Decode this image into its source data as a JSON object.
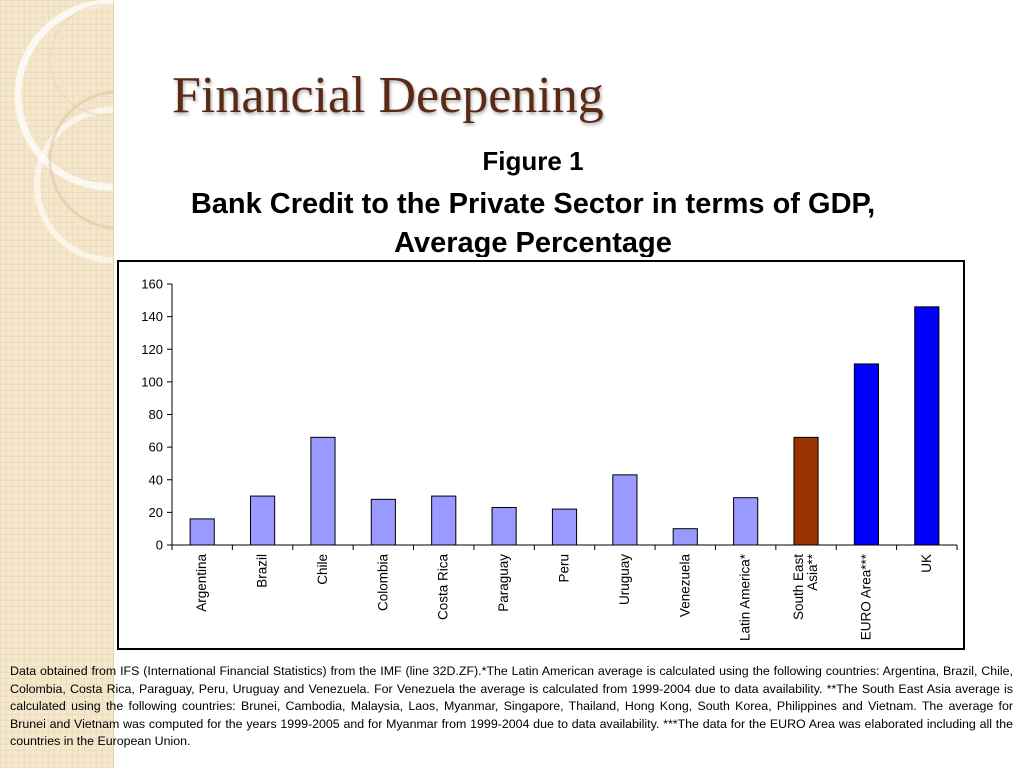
{
  "slide": {
    "title": "Financial Deepening",
    "figure_label": "Figure 1",
    "figure_title_line1": "Bank Credit to the Private Sector in terms of GDP,",
    "figure_title_line2": "Average Percentage"
  },
  "colors": {
    "bar_default": "#9999ff",
    "bar_highlight_asia": "#993300",
    "bar_highlight_eu_uk": "#0000ff",
    "title_color": "#5b2a17",
    "sidebar_bg": "#f4e7cc"
  },
  "chart_data": {
    "type": "bar",
    "title": "",
    "xlabel": "",
    "ylabel": "",
    "categories": [
      [
        "Argentina"
      ],
      [
        "Brazil"
      ],
      [
        "Chile"
      ],
      [
        "Colombia"
      ],
      [
        "Costa Rica"
      ],
      [
        "Paraguay"
      ],
      [
        "Peru"
      ],
      [
        "Uruguay"
      ],
      [
        "Venezuela"
      ],
      [
        "Latin America*"
      ],
      [
        "South East",
        "Asia**"
      ],
      [
        "EURO Area***"
      ],
      [
        "UK"
      ]
    ],
    "values": [
      16,
      30,
      66,
      28,
      30,
      23,
      22,
      43,
      10,
      29,
      66,
      111,
      146
    ],
    "bar_colors": [
      "#9999ff",
      "#9999ff",
      "#9999ff",
      "#9999ff",
      "#9999ff",
      "#9999ff",
      "#9999ff",
      "#9999ff",
      "#9999ff",
      "#9999ff",
      "#993300",
      "#0000ff",
      "#0000ff"
    ],
    "ylim": [
      0,
      160
    ],
    "yticks": [
      0,
      20,
      40,
      60,
      80,
      100,
      120,
      140,
      160
    ],
    "grid": false,
    "legend": "none"
  },
  "footnote": "Data obtained from IFS (International Financial Statistics) from the IMF (line 32D.ZF).*The Latin American average is calculated using the following countries: Argentina, Brazil, Chile, Colombia, Costa Rica, Paraguay, Peru, Uruguay and Venezuela. For Venezuela the average is calculated from 1999-2004 due to data availability. **The South East Asia average is calculated using the following countries: Brunei, Cambodia, Malaysia, Laos, Myanmar, Singapore, Thailand, Hong Kong, South Korea, Philippines and Vietnam. The average for Brunei and Vietnam was computed for the years 1999-2005 and for Myanmar from 1999-2004 due to data availability. ***The data for the EURO Area was elaborated including all the countries in the European Union."
}
